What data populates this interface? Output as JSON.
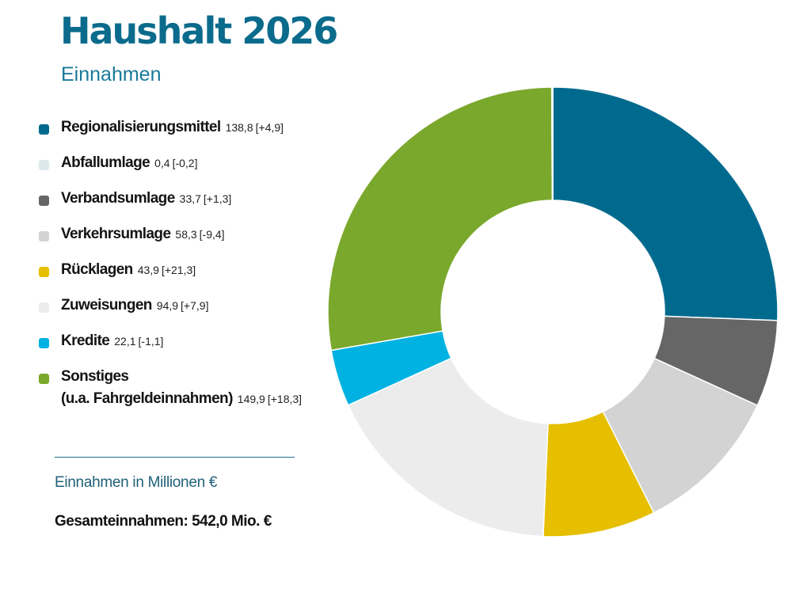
{
  "header": {
    "title": "Haushalt 2026",
    "subtitle": "Einnahmen"
  },
  "footer": {
    "unit_note": "Einnahmen in Millionen €",
    "total": "Gesamteinnahmen: 542,0 Mio. €"
  },
  "chart_data": {
    "type": "pie",
    "variant": "donut",
    "legend_placement": "left",
    "start_angle_deg": 0,
    "direction": "clockwise",
    "unit": "Mio. €",
    "categories": [
      "Regionalisierungsmittel",
      "Verbandsumlage",
      "Verkehrsumlage",
      "Rücklagen",
      "Zuweisungen",
      "Kredite",
      "Sonstiges (u.a. Fahrgeldeinnahmen)",
      "Abfallumlage"
    ],
    "values": [
      138.8,
      33.7,
      58.3,
      43.9,
      94.9,
      22.1,
      149.9,
      0.4
    ],
    "colors": [
      "#006a8e",
      "#666666",
      "#d3d3d3",
      "#e5bf00",
      "#ececec",
      "#00b2e2",
      "#7aa82c",
      "#dbe9ec"
    ],
    "legend": [
      {
        "label": "Regionalisierungsmittel",
        "value": "138,8",
        "change": "[+4,9]",
        "color": "#006a8e"
      },
      {
        "label": "Abfallumlage",
        "value": "0,4",
        "change": "[-0,2]",
        "color": "#dbe9ec"
      },
      {
        "label": "Verbandsumlage",
        "value": "33,7",
        "change": "[+1,3]",
        "color": "#666666"
      },
      {
        "label": "Verkehrsumlage",
        "value": "58,3",
        "change": "[-9,4]",
        "color": "#d3d3d3"
      },
      {
        "label": "Rücklagen",
        "value": "43,9",
        "change": "[+21,3]",
        "color": "#e5bf00"
      },
      {
        "label": "Zuweisungen",
        "value": "94,9",
        "change": "[+7,9]",
        "color": "#ececec"
      },
      {
        "label": "Kredite",
        "value": "22,1",
        "change": "[-1,1]",
        "color": "#00b2e2"
      },
      {
        "label": "Sonstiges",
        "label_line2": "(u.a. Fahrgeldeinnahmen)",
        "value": "149,9",
        "change": "[+18,3]",
        "color": "#7aa82c"
      }
    ]
  }
}
